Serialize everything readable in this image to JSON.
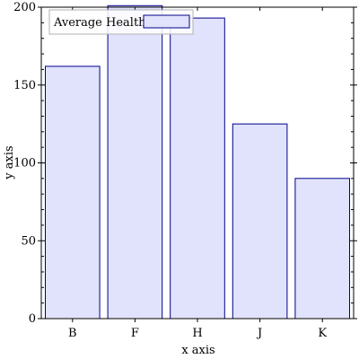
{
  "chart_data": {
    "type": "bar",
    "title": "",
    "xlabel": "x axis",
    "ylabel": "y axis",
    "categories": [
      "B",
      "F",
      "H",
      "J",
      "K"
    ],
    "series": [
      {
        "name": "Average Health",
        "values": [
          162,
          201,
          193,
          125,
          90
        ]
      }
    ],
    "ylim": [
      0,
      200
    ],
    "yticks": [
      0,
      50,
      100,
      150,
      200
    ],
    "grid": false,
    "legend_position": "top-left",
    "colors": {
      "bar_fill": "#e0e3fb",
      "bar_stroke": "#00008b",
      "axis": "#000000",
      "legend_border": "#b0b0b0"
    }
  }
}
